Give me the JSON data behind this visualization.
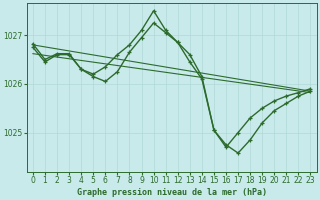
{
  "title": "Graphe pression niveau de la mer (hPa)",
  "background_color": "#c8eaea",
  "grid_color": "#b0d8d8",
  "line_color": "#2d6b2d",
  "xlim": [
    -0.5,
    23.5
  ],
  "ylim": [
    1024.2,
    1027.65
  ],
  "yticks": [
    1025,
    1026,
    1027
  ],
  "xticks": [
    0,
    1,
    2,
    3,
    4,
    5,
    6,
    7,
    8,
    9,
    10,
    11,
    12,
    13,
    14,
    15,
    16,
    17,
    18,
    19,
    20,
    21,
    22,
    23
  ],
  "series": [
    {
      "x": [
        0,
        23
      ],
      "y": [
        1026.8,
        1025.85
      ],
      "linestyle": "-",
      "linewidth": 0.8,
      "marker": false
    },
    {
      "x": [
        0,
        23
      ],
      "y": [
        1026.62,
        1025.82
      ],
      "linestyle": "-",
      "linewidth": 0.8,
      "marker": false
    },
    {
      "x": [
        0,
        1,
        2,
        3,
        4,
        5,
        6,
        7,
        8,
        9,
        10,
        11,
        12,
        13,
        14,
        15,
        16,
        17,
        18,
        19,
        20,
        21,
        22,
        23
      ],
      "y": [
        1026.75,
        1026.45,
        1026.6,
        1026.6,
        1026.3,
        1026.15,
        1026.05,
        1026.25,
        1026.65,
        1026.95,
        1027.25,
        1027.05,
        1026.85,
        1026.45,
        1026.1,
        1025.05,
        1024.75,
        1024.58,
        1024.85,
        1025.2,
        1025.45,
        1025.6,
        1025.75,
        1025.85
      ],
      "linestyle": "-",
      "linewidth": 1.0,
      "marker": true
    },
    {
      "x": [
        0,
        1,
        2,
        3,
        4,
        5,
        6,
        7,
        8,
        9,
        10,
        11,
        12,
        13,
        14,
        15,
        16,
        17,
        18,
        19,
        20,
        21,
        22,
        23
      ],
      "y": [
        1026.82,
        1026.5,
        1026.62,
        1026.62,
        1026.3,
        1026.2,
        1026.35,
        1026.6,
        1026.8,
        1027.1,
        1027.5,
        1027.1,
        1026.85,
        1026.6,
        1026.15,
        1025.05,
        1024.7,
        1025.0,
        1025.3,
        1025.5,
        1025.65,
        1025.75,
        1025.82,
        1025.9
      ],
      "linestyle": "-",
      "linewidth": 1.0,
      "marker": true
    }
  ]
}
